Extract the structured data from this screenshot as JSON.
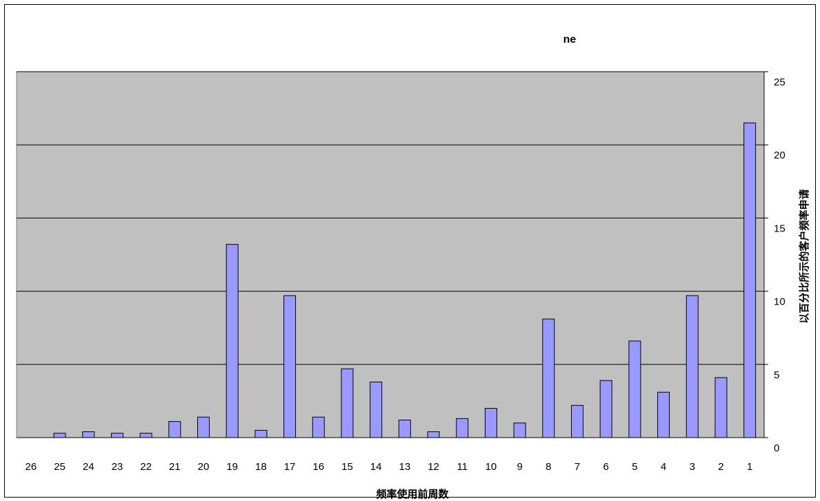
{
  "chart_data": {
    "type": "bar",
    "title": "ne",
    "xlabel": "频率使用前周数",
    "ylabel": "以百分比所示的客户频率申请",
    "categories": [
      "26",
      "25",
      "24",
      "23",
      "22",
      "21",
      "20",
      "19",
      "18",
      "17",
      "16",
      "15",
      "14",
      "13",
      "12",
      "11",
      "10",
      "9",
      "8",
      "7",
      "6",
      "5",
      "4",
      "3",
      "2",
      "1"
    ],
    "values": [
      0,
      0.3,
      0.4,
      0.3,
      0.3,
      1.1,
      1.4,
      13.2,
      0.5,
      9.7,
      1.4,
      4.7,
      3.8,
      1.2,
      0.4,
      1.3,
      2.0,
      1.0,
      8.1,
      2.2,
      3.9,
      6.6,
      3.1,
      9.7,
      4.1,
      21.5
    ],
    "ylim": [
      0,
      25
    ],
    "yticks": [
      0,
      5,
      10,
      15,
      20,
      25
    ],
    "y_axis_side": "right",
    "grid": true,
    "plot_background": "#c0c0c0",
    "bar_color": "#9999ff",
    "bar_edge_color": "#000000"
  }
}
